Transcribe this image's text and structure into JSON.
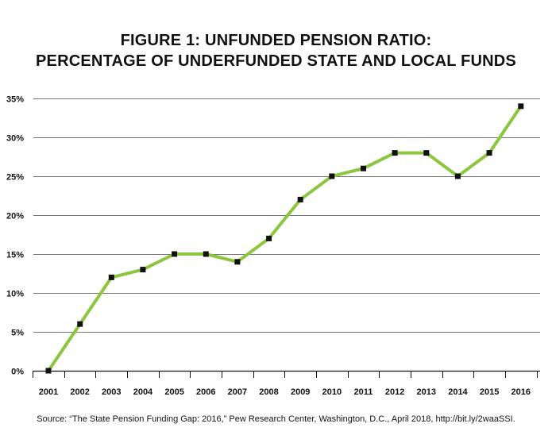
{
  "chart_data": {
    "type": "line",
    "title": "FIGURE 1: UNFUNDED PENSION RATIO:",
    "subtitle": "PERCENTAGE OF UNDERFUNDED STATE AND LOCAL FUNDS",
    "xlabel": "",
    "ylabel": "",
    "categories": [
      "2001",
      "2002",
      "2003",
      "2004",
      "2005",
      "2006",
      "2007",
      "2008",
      "2009",
      "2010",
      "2011",
      "2012",
      "2013",
      "2014",
      "2015",
      "2016"
    ],
    "series": [
      {
        "values": [
          0,
          6,
          12,
          13,
          15,
          15,
          14,
          17,
          22,
          25,
          26,
          28,
          28,
          25,
          28,
          34
        ]
      }
    ],
    "ylim": [
      0,
      35
    ],
    "yticks": [
      0,
      5,
      10,
      15,
      20,
      25,
      30,
      35
    ],
    "ytick_labels": [
      "0%",
      "5%",
      "10%",
      "15%",
      "20%",
      "25%",
      "30%",
      "35%"
    ],
    "grid": "horizontal",
    "legend": "none",
    "line_color": "#8cc63f",
    "marker_color": "#111111",
    "grid_color": "#444444"
  },
  "source_note": "Source: “The State Pension Funding Gap: 2016,” Pew Research Center, Washington, D.C., April 2018, http://bit.ly/2waaSSI."
}
